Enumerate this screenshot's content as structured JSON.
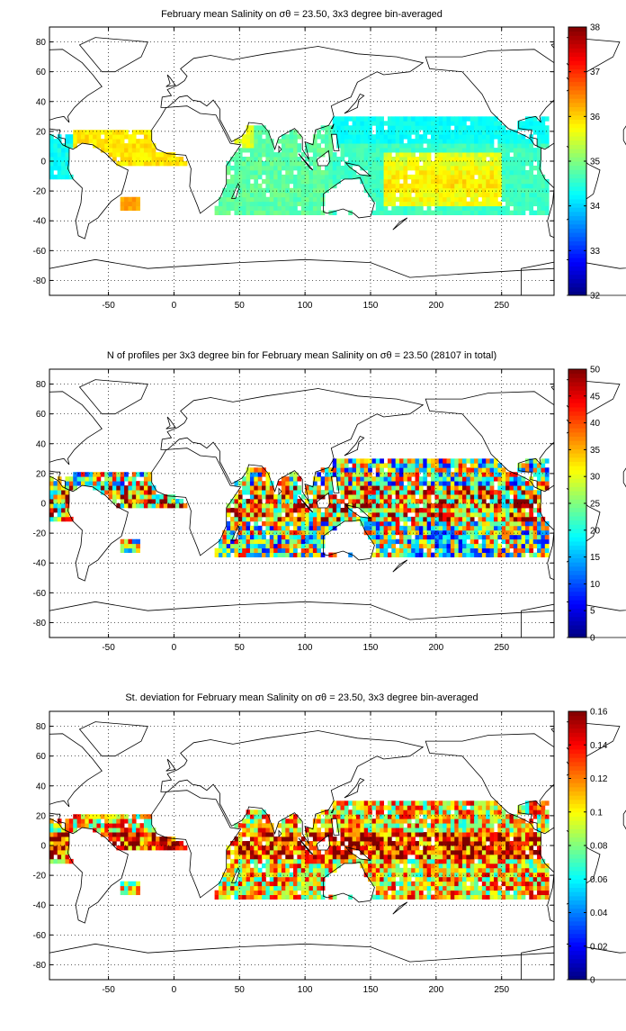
{
  "chart_data": [
    {
      "type": "heatmap",
      "title": "February mean Salinity on σθ = 23.50, 3x3 degree bin-averaged",
      "xlim": [
        -95,
        290
      ],
      "ylim": [
        -90,
        90
      ],
      "xticks": [
        -50,
        0,
        50,
        100,
        150,
        200,
        250
      ],
      "yticks": [
        80,
        60,
        40,
        20,
        0,
        -20,
        -40,
        -60,
        -80
      ],
      "grid": "dotted",
      "colorbar": {
        "min": 32,
        "max": 38,
        "ticks": [
          32,
          33,
          34,
          35,
          36,
          37,
          38
        ]
      },
      "bins": {
        "size_deg": 3,
        "approx_value_range": [
          33.5,
          36.5
        ]
      }
    },
    {
      "type": "heatmap",
      "title": "N of profiles per 3x3 degree bin for February mean Salinity on σθ = 23.50 (28107 in total)",
      "xlim": [
        -95,
        290
      ],
      "ylim": [
        -90,
        90
      ],
      "xticks": [
        -50,
        0,
        50,
        100,
        150,
        200,
        250
      ],
      "yticks": [
        80,
        60,
        40,
        20,
        0,
        -20,
        -40,
        -60,
        -80
      ],
      "grid": "dotted",
      "colorbar": {
        "min": 0,
        "max": 50,
        "ticks": [
          0,
          5,
          10,
          15,
          20,
          25,
          30,
          35,
          40,
          45,
          50
        ]
      },
      "total_profiles": 28107,
      "bins": {
        "size_deg": 3,
        "approx_value_range": [
          1,
          50
        ]
      }
    },
    {
      "type": "heatmap",
      "title": "St. deviation for February mean Salinity on σθ = 23.50, 3x3 degree bin-averaged",
      "xlim": [
        -95,
        290
      ],
      "ylim": [
        -90,
        90
      ],
      "xticks": [
        -50,
        0,
        50,
        100,
        150,
        200,
        250
      ],
      "yticks": [
        80,
        60,
        40,
        20,
        0,
        -20,
        -40,
        -60,
        -80
      ],
      "grid": "dotted",
      "colorbar": {
        "min": 0,
        "max": 0.16,
        "ticks": [
          0,
          0.02,
          0.04,
          0.06,
          0.08,
          0.1,
          0.12,
          0.14,
          0.16
        ]
      },
      "bins": {
        "size_deg": 3,
        "approx_value_range": [
          0,
          0.16
        ]
      }
    }
  ]
}
